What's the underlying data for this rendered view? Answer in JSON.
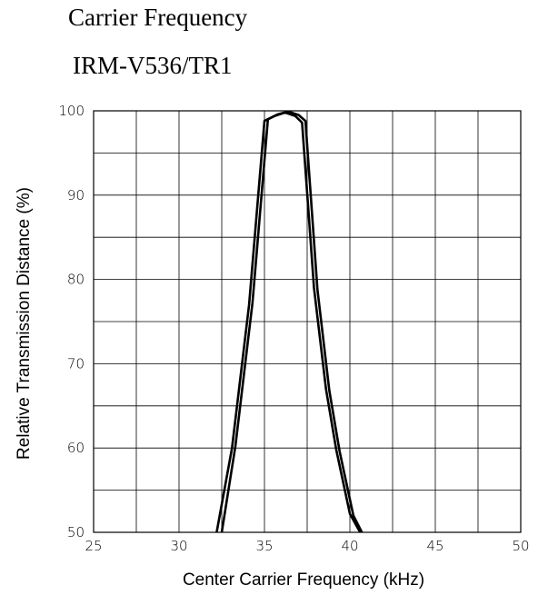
{
  "title_lines": [
    "Carrier Frequency",
    "IRM-V536/TR1"
  ],
  "chart_data": {
    "type": "line",
    "title": "Carrier Frequency IRM-V536/TR1",
    "xlabel": "Center Carrier Frequency  (kHz)",
    "ylabel": "Relative Transmission Distance (%)",
    "xlim": [
      25,
      50
    ],
    "ylim": [
      50,
      100
    ],
    "x_ticks": [
      25,
      30,
      35,
      40,
      45,
      50
    ],
    "y_ticks": [
      50,
      60,
      70,
      80,
      90,
      100
    ],
    "grid": true,
    "grid_x_step": 2.5,
    "grid_y_step": 5,
    "line_color": "#000000",
    "series": [
      {
        "x": [
          32.2,
          33.1,
          34.1,
          35.0,
          35.6,
          36.2,
          36.8,
          37.2,
          37.9,
          38.6,
          39.2,
          40.0,
          40.6
        ],
        "y": [
          50.0,
          60.0,
          77.0,
          98.8,
          99.4,
          99.8,
          99.4,
          98.6,
          79.0,
          67.0,
          59.8,
          52.2,
          50.0
        ]
      },
      {
        "x": [
          32.5,
          33.3,
          34.3,
          35.2,
          35.8,
          36.4,
          37.0,
          37.4,
          38.1,
          38.8,
          39.4,
          40.2,
          40.7
        ],
        "y": [
          50.0,
          60.2,
          77.2,
          99.0,
          99.6,
          99.9,
          99.5,
          98.8,
          78.8,
          66.8,
          59.6,
          52.0,
          50.0
        ]
      }
    ]
  }
}
